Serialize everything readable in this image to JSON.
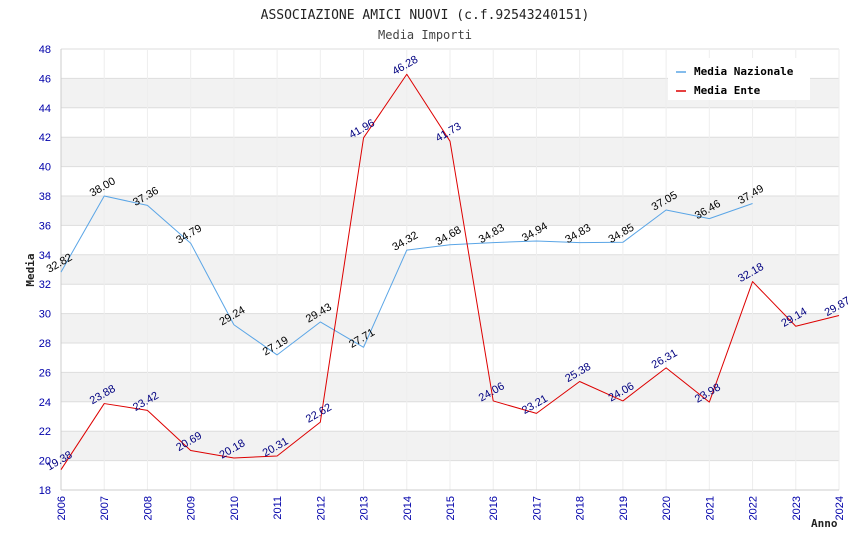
{
  "chart_data": {
    "type": "line",
    "title": "ASSOCIAZIONE AMICI NUOVI (c.f.92543240151)",
    "subtitle": "Media Importi",
    "xlabel": "Anno",
    "ylabel": "Media",
    "ylim": [
      18,
      48
    ],
    "yticks": [
      "18",
      "20",
      "22",
      "24",
      "26",
      "28",
      "30",
      "32",
      "34",
      "36",
      "38",
      "40",
      "42",
      "44",
      "46",
      "48"
    ],
    "categories": [
      "2006",
      "2007",
      "2008",
      "2009",
      "2010",
      "2011",
      "2012",
      "2013",
      "2014",
      "2015",
      "2016",
      "2017",
      "2018",
      "2019",
      "2020",
      "2021",
      "2022",
      "2023",
      "2024"
    ],
    "legend_position": "top-right",
    "series": [
      {
        "name": "Media Nazionale",
        "color": "#5aa5e6",
        "label_color": "#000000",
        "values": [
          32.82,
          38.0,
          37.36,
          34.79,
          29.24,
          27.19,
          29.43,
          27.71,
          34.32,
          34.68,
          34.83,
          34.94,
          34.83,
          34.85,
          37.05,
          36.46,
          37.49,
          null,
          null
        ],
        "labels": [
          "32.82",
          "38.00",
          "37.36",
          "34.79",
          "29.24",
          "27.19",
          "29.43",
          "27.71",
          "34.32",
          "34.68",
          "34.83",
          "34.94",
          "34.83",
          "34.85",
          "37.05",
          "36.46",
          "37.49",
          "",
          ""
        ]
      },
      {
        "name": "Media Ente",
        "color": "#dd0000",
        "label_color": "#000080",
        "values": [
          19.38,
          23.88,
          23.42,
          20.69,
          20.18,
          20.31,
          22.62,
          41.96,
          46.28,
          41.73,
          24.06,
          23.21,
          25.38,
          24.06,
          26.31,
          23.98,
          32.18,
          29.14,
          29.87
        ],
        "labels": [
          "19.38",
          "23.88",
          "23.42",
          "20.69",
          "20.18",
          "20.31",
          "22.62",
          "41.96",
          "46.28",
          "41.73",
          "24.06",
          "23.21",
          "25.38",
          "24.06",
          "26.31",
          "23.98",
          "32.18",
          "29.14",
          "29.87"
        ]
      }
    ]
  }
}
